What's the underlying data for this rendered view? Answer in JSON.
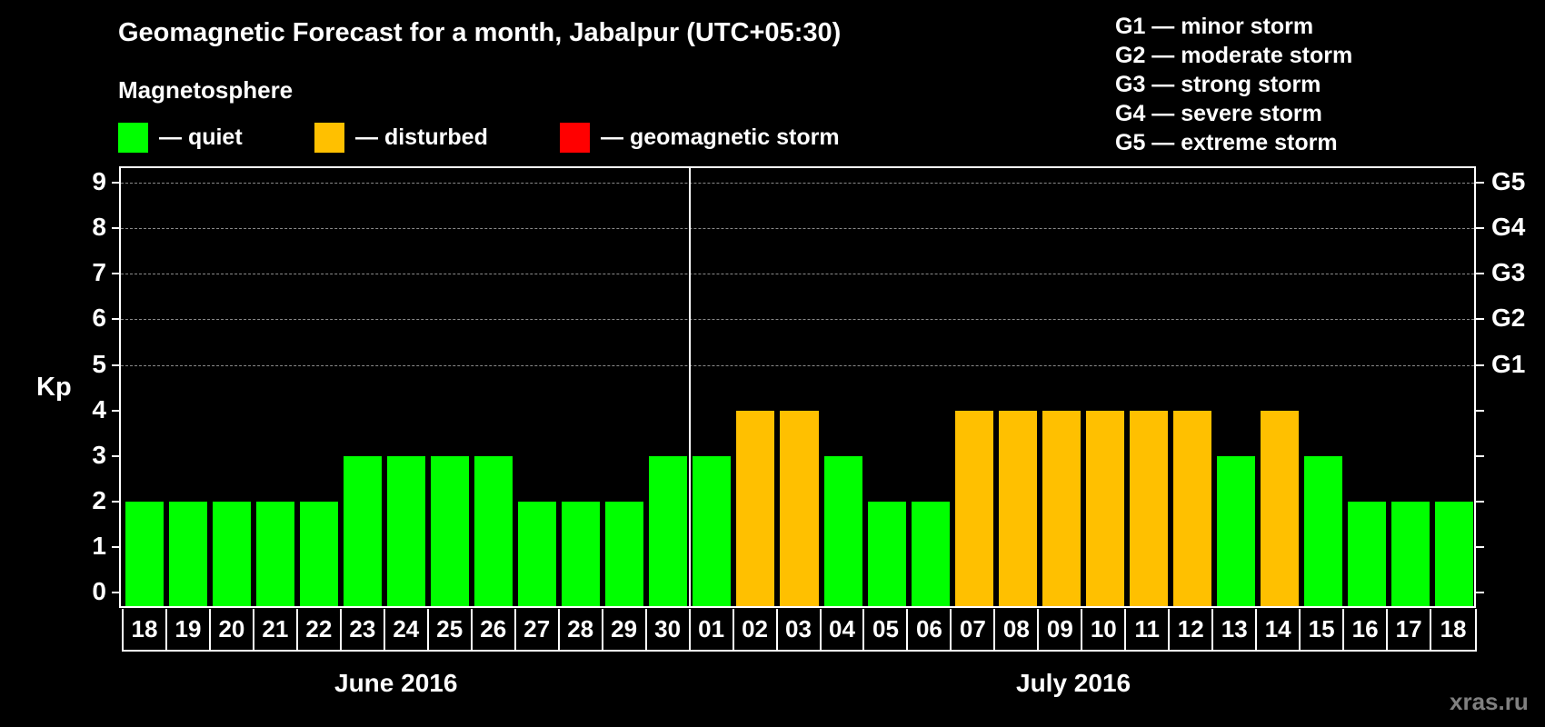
{
  "title": "Geomagnetic Forecast for a month, Jabalpur (UTC+05:30)",
  "subtitle": "Magnetosphere",
  "legend": [
    {
      "label": "— quiet",
      "color": "#00ff00"
    },
    {
      "label": "— disturbed",
      "color": "#ffc000"
    },
    {
      "label": "— geomagnetic storm",
      "color": "#ff0000"
    }
  ],
  "g_scale_legend": [
    "G1 — minor storm",
    "G2 — moderate storm",
    "G3 — strong storm",
    "G4 — severe storm",
    "G5 — extreme storm"
  ],
  "y_axis": {
    "label": "Kp",
    "ticks": [
      "0",
      "1",
      "2",
      "3",
      "4",
      "5",
      "6",
      "7",
      "8",
      "9"
    ]
  },
  "right_axis": {
    "ticks": [
      {
        "kp": 5,
        "label": "G1"
      },
      {
        "kp": 6,
        "label": "G2"
      },
      {
        "kp": 7,
        "label": "G3"
      },
      {
        "kp": 8,
        "label": "G4"
      },
      {
        "kp": 9,
        "label": "G5"
      }
    ]
  },
  "months": [
    {
      "label": "June 2016"
    },
    {
      "label": "July 2016"
    }
  ],
  "watermark": "xras.ru",
  "colors": {
    "quiet": "#00ff00",
    "disturbed": "#ffc000",
    "storm": "#ff0000",
    "background": "#000000",
    "grid": "#8a8a8a"
  },
  "chart_data": {
    "type": "bar",
    "title": "Geomagnetic Forecast for a month, Jabalpur (UTC+05:30)",
    "xlabel": "",
    "ylabel": "Kp",
    "ylim": [
      0,
      9
    ],
    "grid": "dashed horizontal at Kp 5-9",
    "categories": [
      "18",
      "19",
      "20",
      "21",
      "22",
      "23",
      "24",
      "25",
      "26",
      "27",
      "28",
      "29",
      "30",
      "01",
      "02",
      "03",
      "04",
      "05",
      "06",
      "07",
      "08",
      "09",
      "10",
      "11",
      "12",
      "13",
      "14",
      "15",
      "16",
      "17",
      "18"
    ],
    "month_groups": [
      {
        "label": "June 2016",
        "days": 13
      },
      {
        "label": "July 2016",
        "days": 18
      }
    ],
    "values": [
      2,
      2,
      2,
      2,
      2,
      3,
      3,
      3,
      3,
      2,
      2,
      2,
      3,
      3,
      4,
      4,
      3,
      2,
      2,
      4,
      4,
      4,
      4,
      4,
      4,
      3,
      4,
      3,
      2,
      2,
      2
    ],
    "status": [
      "quiet",
      "quiet",
      "quiet",
      "quiet",
      "quiet",
      "quiet",
      "quiet",
      "quiet",
      "quiet",
      "quiet",
      "quiet",
      "quiet",
      "quiet",
      "quiet",
      "disturbed",
      "disturbed",
      "quiet",
      "quiet",
      "quiet",
      "disturbed",
      "disturbed",
      "disturbed",
      "disturbed",
      "disturbed",
      "disturbed",
      "quiet",
      "disturbed",
      "quiet",
      "quiet",
      "quiet",
      "quiet"
    ],
    "legend": [
      "quiet",
      "disturbed",
      "geomagnetic storm"
    ],
    "secondary_y_labels": {
      "5": "G1",
      "6": "G2",
      "7": "G3",
      "8": "G4",
      "9": "G5"
    }
  }
}
